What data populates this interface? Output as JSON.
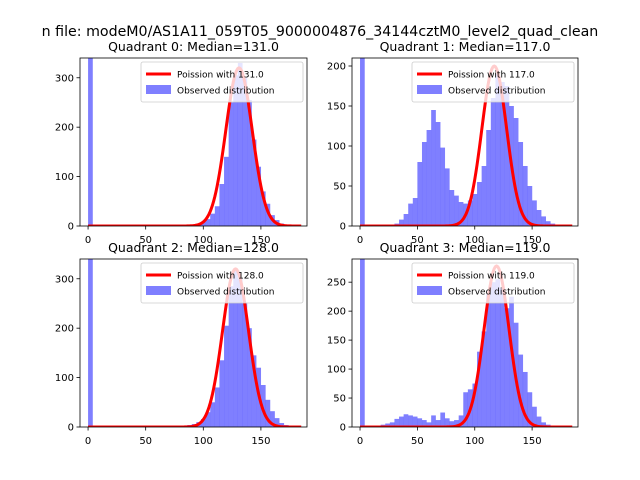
{
  "figure_title": "n file: modeM0/AS1A11_059T05_9000004876_34144cztM0_level2_quad_clean",
  "colors": {
    "hist": "#0000ff",
    "hist_alpha": 0.5,
    "curve": "#ff0000",
    "axes": "#000000"
  },
  "chart_data": [
    {
      "type": "bar",
      "title": "Quadrant 0: Median=131.0",
      "xlabel": "",
      "ylabel": "",
      "xlim": [
        -7,
        190
      ],
      "ylim": [
        0,
        340
      ],
      "xticks": [
        0,
        50,
        100,
        150
      ],
      "yticks": [
        0,
        100,
        200,
        300
      ],
      "grid": false,
      "legend": {
        "position": "top-right",
        "line_label": "Poission with 131.0",
        "bar_label": "Observed distribution"
      },
      "median": 131.0,
      "curve_peak": 320,
      "bin_width": 4.1,
      "bins": [
        {
          "x": 0,
          "count": 340
        },
        {
          "x": 86,
          "count": 2
        },
        {
          "x": 90,
          "count": 3
        },
        {
          "x": 94,
          "count": 5
        },
        {
          "x": 98,
          "count": 8
        },
        {
          "x": 102,
          "count": 14
        },
        {
          "x": 106,
          "count": 25
        },
        {
          "x": 110,
          "count": 40
        },
        {
          "x": 114,
          "count": 85
        },
        {
          "x": 118,
          "count": 140
        },
        {
          "x": 122,
          "count": 250
        },
        {
          "x": 126,
          "count": 305
        },
        {
          "x": 130,
          "count": 330
        },
        {
          "x": 134,
          "count": 300
        },
        {
          "x": 138,
          "count": 255
        },
        {
          "x": 142,
          "count": 175
        },
        {
          "x": 146,
          "count": 120
        },
        {
          "x": 150,
          "count": 70
        },
        {
          "x": 154,
          "count": 45
        },
        {
          "x": 158,
          "count": 22
        },
        {
          "x": 162,
          "count": 12
        },
        {
          "x": 166,
          "count": 5
        },
        {
          "x": 170,
          "count": 3
        },
        {
          "x": 174,
          "count": 2
        },
        {
          "x": 178,
          "count": 1
        }
      ]
    },
    {
      "type": "bar",
      "title": "Quadrant 1: Median=117.0",
      "xlabel": "",
      "ylabel": "",
      "xlim": [
        -7,
        190
      ],
      "ylim": [
        0,
        210
      ],
      "xticks": [
        0,
        50,
        100,
        150
      ],
      "yticks": [
        0,
        50,
        100,
        150,
        200
      ],
      "grid": false,
      "legend": {
        "position": "top-right",
        "line_label": "Poission with 117.0",
        "bar_label": "Observed distribution"
      },
      "median": 117.0,
      "curve_peak": 200,
      "bin_width": 4.1,
      "bins": [
        {
          "x": 0,
          "count": 210
        },
        {
          "x": 30,
          "count": 3
        },
        {
          "x": 34,
          "count": 8
        },
        {
          "x": 38,
          "count": 15
        },
        {
          "x": 42,
          "count": 28
        },
        {
          "x": 46,
          "count": 35
        },
        {
          "x": 50,
          "count": 80
        },
        {
          "x": 54,
          "count": 105
        },
        {
          "x": 58,
          "count": 120
        },
        {
          "x": 62,
          "count": 145
        },
        {
          "x": 66,
          "count": 130
        },
        {
          "x": 70,
          "count": 98
        },
        {
          "x": 74,
          "count": 72
        },
        {
          "x": 78,
          "count": 45
        },
        {
          "x": 82,
          "count": 38
        },
        {
          "x": 86,
          "count": 30
        },
        {
          "x": 90,
          "count": 28
        },
        {
          "x": 94,
          "count": 32
        },
        {
          "x": 98,
          "count": 40
        },
        {
          "x": 102,
          "count": 55
        },
        {
          "x": 106,
          "count": 75
        },
        {
          "x": 110,
          "count": 120
        },
        {
          "x": 114,
          "count": 160
        },
        {
          "x": 118,
          "count": 190
        },
        {
          "x": 122,
          "count": 180
        },
        {
          "x": 126,
          "count": 175
        },
        {
          "x": 130,
          "count": 150
        },
        {
          "x": 134,
          "count": 135
        },
        {
          "x": 138,
          "count": 105
        },
        {
          "x": 142,
          "count": 75
        },
        {
          "x": 146,
          "count": 50
        },
        {
          "x": 150,
          "count": 32
        },
        {
          "x": 154,
          "count": 20
        },
        {
          "x": 158,
          "count": 12
        },
        {
          "x": 162,
          "count": 6
        },
        {
          "x": 166,
          "count": 3
        },
        {
          "x": 170,
          "count": 1
        }
      ]
    },
    {
      "type": "bar",
      "title": "Quadrant 2: Median=128.0",
      "xlabel": "",
      "ylabel": "",
      "xlim": [
        -7,
        190
      ],
      "ylim": [
        0,
        340
      ],
      "xticks": [
        0,
        50,
        100,
        150
      ],
      "yticks": [
        0,
        100,
        200,
        300
      ],
      "grid": false,
      "legend": {
        "position": "top-right",
        "line_label": "Poission with 128.0",
        "bar_label": "Observed distribution"
      },
      "median": 128.0,
      "curve_peak": 320,
      "bin_width": 4.1,
      "bins": [
        {
          "x": 0,
          "count": 340
        },
        {
          "x": 30,
          "count": 1
        },
        {
          "x": 70,
          "count": 2
        },
        {
          "x": 78,
          "count": 2
        },
        {
          "x": 86,
          "count": 4
        },
        {
          "x": 90,
          "count": 6
        },
        {
          "x": 94,
          "count": 10
        },
        {
          "x": 98,
          "count": 16
        },
        {
          "x": 102,
          "count": 30
        },
        {
          "x": 106,
          "count": 50
        },
        {
          "x": 110,
          "count": 80
        },
        {
          "x": 114,
          "count": 135
        },
        {
          "x": 118,
          "count": 205
        },
        {
          "x": 122,
          "count": 285
        },
        {
          "x": 126,
          "count": 320
        },
        {
          "x": 130,
          "count": 300
        },
        {
          "x": 134,
          "count": 250
        },
        {
          "x": 138,
          "count": 200
        },
        {
          "x": 142,
          "count": 145
        },
        {
          "x": 146,
          "count": 120
        },
        {
          "x": 150,
          "count": 85
        },
        {
          "x": 154,
          "count": 55
        },
        {
          "x": 158,
          "count": 32
        },
        {
          "x": 162,
          "count": 18
        },
        {
          "x": 166,
          "count": 8
        },
        {
          "x": 170,
          "count": 4
        },
        {
          "x": 174,
          "count": 2
        }
      ]
    },
    {
      "type": "bar",
      "title": "Quadrant 3: Median=119.0",
      "xlabel": "",
      "ylabel": "",
      "xlim": [
        -7,
        190
      ],
      "ylim": [
        0,
        290
      ],
      "xticks": [
        0,
        50,
        100,
        150
      ],
      "yticks": [
        0,
        50,
        100,
        150,
        200,
        250
      ],
      "grid": false,
      "legend": {
        "position": "top-right",
        "line_label": "Poission with 119.0",
        "bar_label": "Observed distribution"
      },
      "median": 119.0,
      "curve_peak": 278,
      "bin_width": 4.1,
      "bins": [
        {
          "x": 0,
          "count": 290
        },
        {
          "x": 18,
          "count": 4
        },
        {
          "x": 22,
          "count": 6
        },
        {
          "x": 26,
          "count": 8
        },
        {
          "x": 30,
          "count": 14
        },
        {
          "x": 34,
          "count": 18
        },
        {
          "x": 38,
          "count": 22
        },
        {
          "x": 42,
          "count": 20
        },
        {
          "x": 46,
          "count": 18
        },
        {
          "x": 50,
          "count": 15
        },
        {
          "x": 54,
          "count": 12
        },
        {
          "x": 58,
          "count": 8
        },
        {
          "x": 62,
          "count": 20
        },
        {
          "x": 66,
          "count": 12
        },
        {
          "x": 70,
          "count": 25
        },
        {
          "x": 74,
          "count": 15
        },
        {
          "x": 78,
          "count": 10
        },
        {
          "x": 82,
          "count": 12
        },
        {
          "x": 86,
          "count": 20
        },
        {
          "x": 90,
          "count": 60
        },
        {
          "x": 94,
          "count": 65
        },
        {
          "x": 98,
          "count": 75
        },
        {
          "x": 102,
          "count": 130
        },
        {
          "x": 106,
          "count": 165
        },
        {
          "x": 110,
          "count": 230
        },
        {
          "x": 114,
          "count": 250
        },
        {
          "x": 118,
          "count": 255
        },
        {
          "x": 122,
          "count": 240
        },
        {
          "x": 126,
          "count": 205
        },
        {
          "x": 130,
          "count": 225
        },
        {
          "x": 134,
          "count": 180
        },
        {
          "x": 138,
          "count": 125
        },
        {
          "x": 142,
          "count": 95
        },
        {
          "x": 146,
          "count": 60
        },
        {
          "x": 150,
          "count": 35
        },
        {
          "x": 154,
          "count": 18
        },
        {
          "x": 158,
          "count": 8
        },
        {
          "x": 162,
          "count": 4
        },
        {
          "x": 166,
          "count": 2
        }
      ]
    }
  ]
}
